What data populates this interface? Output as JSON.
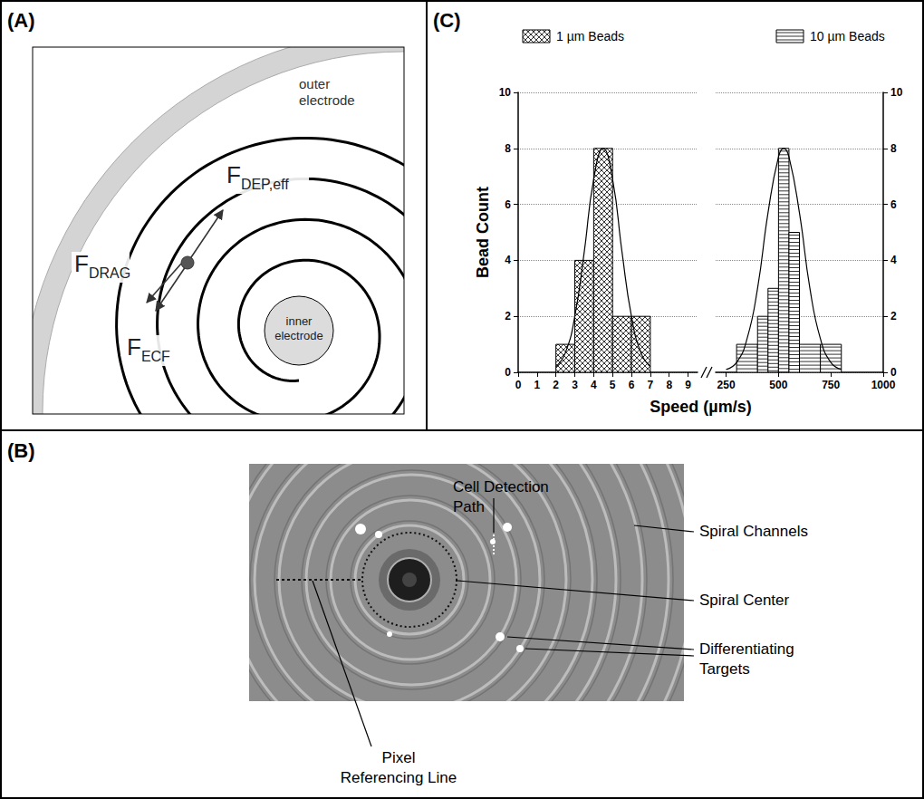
{
  "figure": {
    "panels": [
      {
        "label": "(A)",
        "texts": {
          "outer_electrode": "outer electrode",
          "inner_electrode": "inner electrode"
        },
        "forces": [
          {
            "symbol": "F",
            "subscript": "DEP,eff"
          },
          {
            "symbol": "F",
            "subscript": "DRAG"
          },
          {
            "symbol": "F",
            "subscript": "ECF"
          }
        ]
      },
      {
        "label": "(B)",
        "annotations": [
          "Cell Detection Path",
          "Spiral Channels",
          "Spiral Center",
          "Differentiating Targets",
          "Pixel Referencing Line"
        ]
      }
    ]
  },
  "chart_data": {
    "panel_label": "(C)",
    "type": "histogram",
    "x_label": "Speed (µm/s)",
    "y_label": "Bead Count",
    "legend": "top",
    "grid": true,
    "x_segments": [
      {
        "xlim": [
          0,
          9.5
        ],
        "xticks": [
          0,
          1,
          2,
          3,
          4,
          5,
          6,
          7,
          8,
          9
        ]
      },
      {
        "xlim": [
          200,
          1000
        ],
        "xticks": [
          250,
          500,
          750,
          1000
        ]
      }
    ],
    "ylim": [
      0,
      10
    ],
    "yticks": [
      0,
      2,
      4,
      6,
      8,
      10
    ],
    "y2lim": [
      0,
      10
    ],
    "y2ticks": [
      0,
      2,
      4,
      6,
      8,
      10
    ],
    "series": [
      {
        "name": "1 µm Beads",
        "color": "#000000",
        "bins": [
          2,
          3,
          4,
          5,
          6,
          7
        ],
        "counts": [
          1,
          4,
          8,
          2,
          2
        ],
        "fit": {
          "x": [
            2,
            2.5,
            3,
            3.5,
            4,
            4.5,
            5,
            5.5,
            6,
            6.5,
            7
          ],
          "y": [
            0.2,
            0.7,
            2,
            4.3,
            6.9,
            8,
            6.9,
            4.3,
            2,
            0.7,
            0.2
          ]
        }
      },
      {
        "name": "10 µm Beads",
        "color": "#000000",
        "bins": [
          300,
          400,
          450,
          500,
          550,
          600,
          700,
          800
        ],
        "counts": [
          1,
          2,
          3,
          8,
          5,
          1,
          1
        ],
        "fit": {
          "x": [
            250,
            300,
            350,
            400,
            450,
            500,
            525,
            550,
            600,
            650,
            700,
            750,
            800
          ],
          "y": [
            0.1,
            0.35,
            1.2,
            3,
            5.7,
            7.7,
            8,
            7.7,
            5.7,
            3,
            1.2,
            0.35,
            0.1
          ]
        }
      }
    ]
  }
}
